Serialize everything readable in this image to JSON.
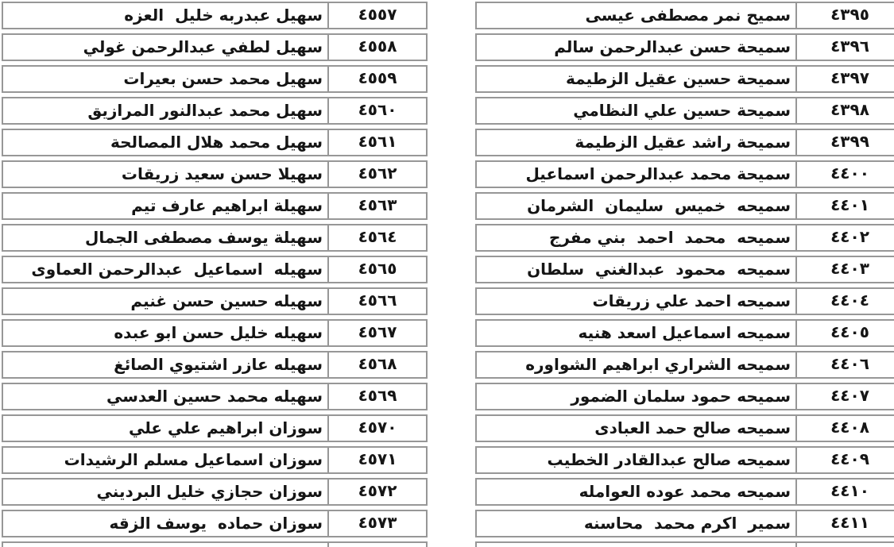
{
  "document": {
    "type": "scanned-name-register",
    "background_color": "#ffffff",
    "border_color": "#979797",
    "text_color": "#151515"
  },
  "tables": {
    "left": {
      "columns": {
        "name": "name",
        "number": "number"
      },
      "rows": [
        {
          "name": "سهيل عبدربه خليل  العزه",
          "number": "٤٥٥٧"
        },
        {
          "name": "سهيل لطفي عبدالرحمن غولي",
          "number": "٤٥٥٨"
        },
        {
          "name": "سهيل محمد حسن بعيرات",
          "number": "٤٥٥٩"
        },
        {
          "name": "سهيل محمد عبدالنور المرازيق",
          "number": "٤٥٦٠"
        },
        {
          "name": "سهيل محمد هلال المصالحة",
          "number": "٤٥٦١"
        },
        {
          "name": "سهيلا حسن سعيد زريقات",
          "number": "٤٥٦٢"
        },
        {
          "name": "سهيلة ابراهيم عارف تيم",
          "number": "٤٥٦٣"
        },
        {
          "name": "سهيلة يوسف مصطفى الجمال",
          "number": "٤٥٦٤"
        },
        {
          "name": "سهيله  اسماعيل  عبدالرحمن العماوى",
          "number": "٤٥٦٥"
        },
        {
          "name": "سهيله حسين حسن غنيم",
          "number": "٤٥٦٦"
        },
        {
          "name": "سهيله خليل حسن ابو عبده",
          "number": "٤٥٦٧"
        },
        {
          "name": "سهيله عازر اشتيوي الصائغ",
          "number": "٤٥٦٨"
        },
        {
          "name": "سهيله محمد حسين العدسي",
          "number": "٤٥٦٩"
        },
        {
          "name": "سوزان ابراهيم علي علي",
          "number": "٤٥٧٠"
        },
        {
          "name": "سوزان اسماعيل مسلم الرشيدات",
          "number": "٤٥٧١"
        },
        {
          "name": "سوزان حجازي خليل البرديني",
          "number": "٤٥٧٢"
        },
        {
          "name": "سوزان حماده  يوسف الزقه",
          "number": "٤٥٧٣"
        }
      ]
    },
    "right": {
      "columns": {
        "name": "name",
        "number": "number"
      },
      "rows": [
        {
          "name": "سميح نمر مصطفى عيسى",
          "number": "٤٣٩٥"
        },
        {
          "name": "سميحة حسن عبدالرحمن سالم",
          "number": "٤٣٩٦"
        },
        {
          "name": "سميحة حسين عقيل الزطيمة",
          "number": "٤٣٩٧"
        },
        {
          "name": "سميحة حسين علي النظامي",
          "number": "٤٣٩٨"
        },
        {
          "name": "سميحة راشد عقيل الزطيمة",
          "number": "٤٣٩٩"
        },
        {
          "name": "سميحة محمد عبدالرحمن اسماعيل",
          "number": "٤٤٠٠"
        },
        {
          "name": "سميحه  خميس  سليمان  الشرمان",
          "number": "٤٤٠١"
        },
        {
          "name": "سميحه  محمد  احمد  بني مفرج",
          "number": "٤٤٠٢"
        },
        {
          "name": "سميحه  محمود  عبدالغني  سلطان",
          "number": "٤٤٠٣"
        },
        {
          "name": "سميحه احمد علي زريقات",
          "number": "٤٤٠٤"
        },
        {
          "name": "سميحه اسماعيل اسعد هنيه",
          "number": "٤٤٠٥"
        },
        {
          "name": "سميحه الشراري ابراهيم الشواوره",
          "number": "٤٤٠٦"
        },
        {
          "name": "سميحه حمود سلمان الضمور",
          "number": "٤٤٠٧"
        },
        {
          "name": "سميحه صالح حمد العبادى",
          "number": "٤٤٠٨"
        },
        {
          "name": "سميحه صالح عبدالقادر الخطيب",
          "number": "٤٤٠٩"
        },
        {
          "name": "سميحه محمد عوده العوامله",
          "number": "٤٤١٠"
        },
        {
          "name": "سمير  اكرم محمد  محاسنه",
          "number": "٤٤١١"
        }
      ]
    }
  }
}
